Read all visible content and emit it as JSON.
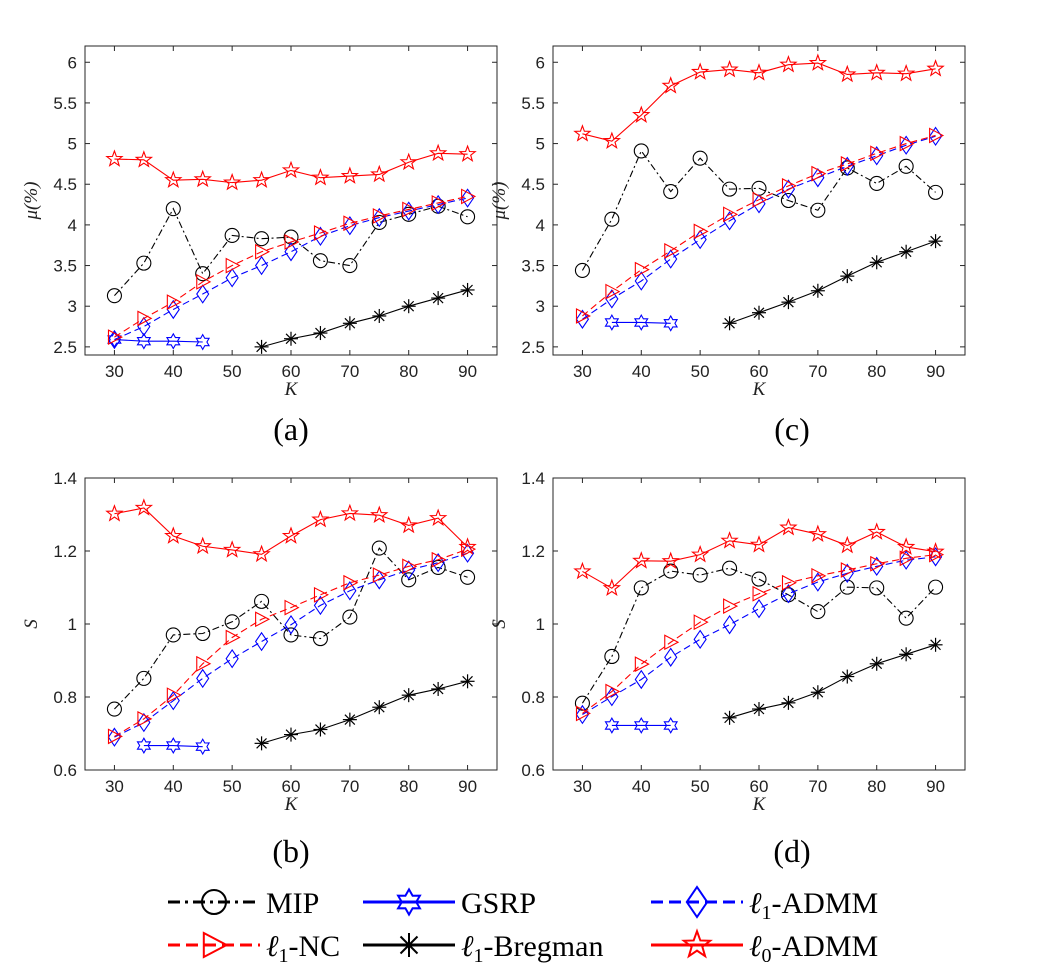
{
  "chart_data": [
    {
      "type": "line",
      "panel_label": "(a)",
      "xlabel": "K",
      "ylabel": "μ(%)",
      "xlim": [
        25,
        95
      ],
      "ylim": [
        2.4,
        6.2
      ],
      "xticks": [
        30,
        40,
        50,
        60,
        70,
        80,
        90
      ],
      "yticks": [
        2.5,
        3,
        3.5,
        4,
        4.5,
        5,
        5.5,
        6
      ],
      "ytick_labels": [
        "2.5",
        "3",
        "3.5",
        "4",
        "4.5",
        "5",
        "5.5",
        "6"
      ],
      "grid": false,
      "series": [
        {
          "name": "MIP",
          "x": [
            30,
            35,
            40,
            45,
            50,
            55,
            60,
            65,
            70,
            75,
            80,
            85,
            90
          ],
          "y": [
            3.13,
            3.53,
            4.2,
            3.4,
            3.87,
            3.83,
            3.85,
            3.56,
            3.5,
            4.03,
            4.13,
            4.23,
            4.1
          ]
        },
        {
          "name": "GSRP",
          "x": [
            30,
            35,
            40,
            45
          ],
          "y": [
            2.59,
            2.57,
            2.57,
            2.56
          ]
        },
        {
          "name": "ℓ1-ADMM",
          "x": [
            30,
            35,
            40,
            45,
            50,
            55,
            60,
            65,
            70,
            75,
            80,
            85,
            90
          ],
          "y": [
            2.59,
            2.75,
            2.96,
            3.15,
            3.35,
            3.5,
            3.67,
            3.86,
            3.99,
            4.09,
            4.17,
            4.25,
            4.33
          ]
        },
        {
          "name": "ℓ1-NC",
          "x": [
            30,
            35,
            40,
            45,
            50,
            55,
            60,
            65,
            70,
            75,
            80,
            85,
            90
          ],
          "y": [
            2.62,
            2.85,
            3.05,
            3.3,
            3.5,
            3.67,
            3.79,
            3.9,
            4.02,
            4.11,
            4.19,
            4.27,
            4.35
          ]
        },
        {
          "name": "ℓ1-Bregman",
          "x": [
            55,
            60,
            65,
            70,
            75,
            80,
            85,
            90
          ],
          "y": [
            2.5,
            2.6,
            2.67,
            2.79,
            2.88,
            3.0,
            3.1,
            3.2
          ]
        },
        {
          "name": "ℓ0-ADMM",
          "x": [
            30,
            35,
            40,
            45,
            50,
            55,
            60,
            65,
            70,
            75,
            80,
            85,
            90
          ],
          "y": [
            4.81,
            4.8,
            4.55,
            4.56,
            4.52,
            4.55,
            4.67,
            4.58,
            4.6,
            4.62,
            4.77,
            4.88,
            4.87
          ]
        }
      ]
    },
    {
      "type": "line",
      "panel_label": "(c)",
      "xlabel": "K",
      "ylabel": "μ(%)",
      "xlim": [
        25,
        95
      ],
      "ylim": [
        2.4,
        6.2
      ],
      "xticks": [
        30,
        40,
        50,
        60,
        70,
        80,
        90
      ],
      "yticks": [
        2.5,
        3,
        3.5,
        4,
        4.5,
        5,
        5.5,
        6
      ],
      "ytick_labels": [
        "2.5",
        "3",
        "3.5",
        "4",
        "4.5",
        "5",
        "5.5",
        "6"
      ],
      "grid": false,
      "series": [
        {
          "name": "MIP",
          "x": [
            30,
            35,
            40,
            45,
            50,
            55,
            60,
            65,
            70,
            75,
            80,
            85,
            90
          ],
          "y": [
            3.44,
            4.07,
            4.91,
            4.41,
            4.82,
            4.44,
            4.45,
            4.3,
            4.18,
            4.7,
            4.51,
            4.72,
            4.4
          ]
        },
        {
          "name": "GSRP",
          "x": [
            35,
            40,
            45
          ],
          "y": [
            2.8,
            2.8,
            2.79
          ]
        },
        {
          "name": "ℓ1-ADMM",
          "x": [
            30,
            35,
            40,
            45,
            50,
            55,
            60,
            65,
            70,
            75,
            80,
            85,
            90
          ],
          "y": [
            2.84,
            3.09,
            3.31,
            3.58,
            3.82,
            4.05,
            4.26,
            4.44,
            4.58,
            4.72,
            4.85,
            4.98,
            5.09
          ]
        },
        {
          "name": "ℓ1-NC",
          "x": [
            30,
            35,
            40,
            45,
            50,
            55,
            60,
            65,
            70,
            75,
            80,
            85,
            90
          ],
          "y": [
            2.88,
            3.18,
            3.45,
            3.68,
            3.92,
            4.13,
            4.31,
            4.48,
            4.63,
            4.75,
            4.88,
            5.0,
            5.1
          ]
        },
        {
          "name": "ℓ1-Bregman",
          "x": [
            55,
            60,
            65,
            70,
            75,
            80,
            85,
            90
          ],
          "y": [
            2.79,
            2.92,
            3.05,
            3.19,
            3.37,
            3.54,
            3.67,
            3.8
          ]
        },
        {
          "name": "ℓ0-ADMM",
          "x": [
            30,
            35,
            40,
            45,
            50,
            55,
            60,
            65,
            70,
            75,
            80,
            85,
            90
          ],
          "y": [
            5.12,
            5.03,
            5.35,
            5.71,
            5.88,
            5.91,
            5.87,
            5.97,
            5.99,
            5.85,
            5.87,
            5.86,
            5.92
          ]
        }
      ]
    },
    {
      "type": "line",
      "panel_label": "(b)",
      "xlabel": "K",
      "ylabel": "S",
      "xlim": [
        25,
        95
      ],
      "ylim": [
        0.6,
        1.4
      ],
      "xticks": [
        30,
        40,
        50,
        60,
        70,
        80,
        90
      ],
      "yticks": [
        0.6,
        0.8,
        1.0,
        1.2,
        1.4
      ],
      "ytick_labels": [
        "0.6",
        "0.8",
        "1",
        "1.2",
        "1.4"
      ],
      "grid": false,
      "series": [
        {
          "name": "MIP",
          "x": [
            30,
            35,
            40,
            45,
            50,
            55,
            60,
            65,
            70,
            75,
            80,
            85,
            90
          ],
          "y": [
            0.767,
            0.851,
            0.97,
            0.974,
            1.006,
            1.062,
            0.97,
            0.96,
            1.019,
            1.208,
            1.121,
            1.155,
            1.128
          ]
        },
        {
          "name": "GSRP",
          "x": [
            35,
            40,
            45
          ],
          "y": [
            0.667,
            0.667,
            0.664
          ]
        },
        {
          "name": "ℓ1-ADMM",
          "x": [
            30,
            35,
            40,
            45,
            50,
            55,
            60,
            65,
            70,
            75,
            80,
            85,
            90
          ],
          "y": [
            0.69,
            0.73,
            0.79,
            0.851,
            0.905,
            0.952,
            0.998,
            1.051,
            1.091,
            1.121,
            1.148,
            1.168,
            1.194
          ]
        },
        {
          "name": "ℓ1-NC",
          "x": [
            30,
            35,
            40,
            45,
            50,
            55,
            60,
            65,
            70,
            75,
            80,
            85,
            90
          ],
          "y": [
            0.692,
            0.74,
            0.805,
            0.891,
            0.963,
            1.013,
            1.045,
            1.08,
            1.113,
            1.134,
            1.158,
            1.176,
            1.205
          ]
        },
        {
          "name": "ℓ1-Bregman",
          "x": [
            55,
            60,
            65,
            70,
            75,
            80,
            85,
            90
          ],
          "y": [
            0.673,
            0.697,
            0.711,
            0.738,
            0.772,
            0.805,
            0.822,
            0.843
          ]
        },
        {
          "name": "ℓ0-ADMM",
          "x": [
            30,
            35,
            40,
            45,
            50,
            55,
            60,
            65,
            70,
            75,
            80,
            85,
            90
          ],
          "y": [
            1.302,
            1.318,
            1.241,
            1.213,
            1.203,
            1.191,
            1.241,
            1.286,
            1.303,
            1.298,
            1.27,
            1.29,
            1.211
          ]
        }
      ]
    },
    {
      "type": "line",
      "panel_label": "(d)",
      "xlabel": "K",
      "ylabel": "S",
      "xlim": [
        25,
        95
      ],
      "ylim": [
        0.6,
        1.4
      ],
      "xticks": [
        30,
        40,
        50,
        60,
        70,
        80,
        90
      ],
      "yticks": [
        0.6,
        0.8,
        1.0,
        1.2,
        1.4
      ],
      "ytick_labels": [
        "0.6",
        "0.8",
        "1",
        "1.2",
        "1.4"
      ],
      "grid": false,
      "series": [
        {
          "name": "MIP",
          "x": [
            30,
            35,
            40,
            45,
            50,
            55,
            60,
            65,
            70,
            75,
            80,
            85,
            90
          ],
          "y": [
            0.783,
            0.911,
            1.099,
            1.145,
            1.134,
            1.153,
            1.123,
            1.08,
            1.034,
            1.101,
            1.099,
            1.016,
            1.101
          ]
        },
        {
          "name": "GSRP",
          "x": [
            35,
            40,
            45
          ],
          "y": [
            0.722,
            0.722,
            0.722
          ]
        },
        {
          "name": "ℓ1-ADMM",
          "x": [
            30,
            35,
            40,
            45,
            50,
            55,
            60,
            65,
            70,
            75,
            80,
            85,
            90
          ],
          "y": [
            0.752,
            0.801,
            0.848,
            0.909,
            0.958,
            0.998,
            1.042,
            1.083,
            1.115,
            1.139,
            1.158,
            1.175,
            1.184
          ]
        },
        {
          "name": "ℓ1-NC",
          "x": [
            30,
            35,
            40,
            45,
            50,
            55,
            60,
            65,
            70,
            75,
            80,
            85,
            90
          ],
          "y": [
            0.755,
            0.815,
            0.89,
            0.95,
            1.005,
            1.049,
            1.083,
            1.113,
            1.132,
            1.148,
            1.165,
            1.18,
            1.19
          ]
        },
        {
          "name": "ℓ1-Bregman",
          "x": [
            55,
            60,
            65,
            70,
            75,
            80,
            85,
            90
          ],
          "y": [
            0.743,
            0.767,
            0.784,
            0.813,
            0.856,
            0.891,
            0.917,
            0.943
          ]
        },
        {
          "name": "ℓ0-ADMM",
          "x": [
            30,
            35,
            40,
            45,
            50,
            55,
            60,
            65,
            70,
            75,
            80,
            85,
            90
          ],
          "y": [
            1.144,
            1.098,
            1.173,
            1.172,
            1.19,
            1.228,
            1.217,
            1.264,
            1.246,
            1.215,
            1.252,
            1.211,
            1.198
          ]
        }
      ]
    }
  ],
  "series_styles": [
    {
      "name": "MIP",
      "color": "#000000",
      "dash": "dashdot",
      "marker": "circle"
    },
    {
      "name": "GSRP",
      "color": "#0000ff",
      "dash": "solid",
      "marker": "hexagram"
    },
    {
      "name": "ℓ1-ADMM",
      "color": "#0000ff",
      "dash": "dashed",
      "marker": "diamond"
    },
    {
      "name": "ℓ1-NC",
      "color": "#ff0000",
      "dash": "dashed",
      "marker": "triangle-right"
    },
    {
      "name": "ℓ1-Bregman",
      "color": "#000000",
      "dash": "solid",
      "marker": "asterisk"
    },
    {
      "name": "ℓ0-ADMM",
      "color": "#ff0000",
      "dash": "solid",
      "marker": "pentagram"
    }
  ],
  "legend": {
    "placement": "bottom",
    "items": [
      {
        "label": "MIP",
        "series": "MIP"
      },
      {
        "label": "GSRP",
        "series": "GSRP"
      },
      {
        "label": "ℓ1-ADMM",
        "series": "ℓ1-ADMM"
      },
      {
        "label": "ℓ1-NC",
        "series": "ℓ1-NC"
      },
      {
        "label": "ℓ1-Bregman",
        "series": "ℓ1-Bregman"
      },
      {
        "label": "ℓ0-ADMM",
        "series": "ℓ0-ADMM"
      }
    ]
  }
}
